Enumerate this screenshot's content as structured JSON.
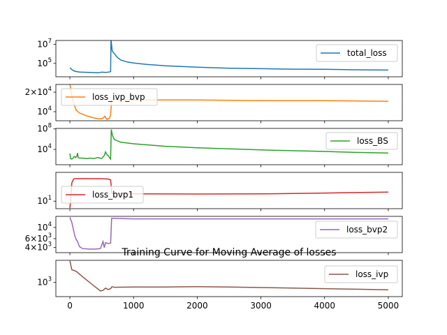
{
  "figure_title": "Training Curve for Moving Average of losses",
  "chart_data": [
    {
      "type": "line",
      "yscale": "log",
      "series_name": "total_loss",
      "color": "#1f77b4",
      "legend_position": "upper right",
      "xlim": [
        -220,
        5220
      ],
      "ylim_log10": [
        3.6,
        7.4
      ],
      "yticks": [
        {
          "value_log10": 5,
          "mantissa": "10",
          "exponent": "5"
        },
        {
          "value_log10": 7,
          "mantissa": "10",
          "exponent": "7"
        }
      ],
      "points": [
        [
          0,
          4.55
        ],
        [
          40,
          4.3
        ],
        [
          80,
          4.18
        ],
        [
          150,
          4.1
        ],
        [
          300,
          4.06
        ],
        [
          450,
          4.02
        ],
        [
          500,
          4.08
        ],
        [
          560,
          4.05
        ],
        [
          620,
          4.1
        ],
        [
          640,
          4.15
        ],
        [
          645,
          7.5
        ],
        [
          665,
          6.3
        ],
        [
          700,
          6.0
        ],
        [
          750,
          5.6
        ],
        [
          800,
          5.35
        ],
        [
          900,
          5.15
        ],
        [
          1000,
          5.05
        ],
        [
          1200,
          4.9
        ],
        [
          1500,
          4.75
        ],
        [
          2000,
          4.6
        ],
        [
          2500,
          4.5
        ],
        [
          3000,
          4.45
        ],
        [
          3500,
          4.4
        ],
        [
          4000,
          4.38
        ],
        [
          4500,
          4.33
        ],
        [
          5000,
          4.3
        ]
      ]
    },
    {
      "type": "line",
      "yscale": "log",
      "series_name": "loss_ivp_bvp",
      "color": "#ff7f0e",
      "legend_position": "upper left",
      "xlim": [
        -220,
        5220
      ],
      "ylim_log10": [
        3.86,
        4.42
      ],
      "yticks": [
        {
          "value_log10": 4.30103,
          "mantissa": "2×10",
          "exponent": "4"
        },
        {
          "value_log10": 4,
          "mantissa": "10",
          "exponent": "4"
        }
      ],
      "points": [
        [
          0,
          4.43
        ],
        [
          20,
          4.3
        ],
        [
          50,
          4.15
        ],
        [
          100,
          4.02
        ],
        [
          150,
          3.98
        ],
        [
          250,
          3.94
        ],
        [
          350,
          3.91
        ],
        [
          450,
          3.89
        ],
        [
          480,
          3.89
        ],
        [
          520,
          3.9
        ],
        [
          550,
          3.93
        ],
        [
          580,
          3.88
        ],
        [
          620,
          3.9
        ],
        [
          640,
          3.95
        ],
        [
          655,
          4.18
        ],
        [
          700,
          4.18
        ],
        [
          1000,
          4.18
        ],
        [
          2000,
          4.18
        ],
        [
          3000,
          4.17
        ],
        [
          4000,
          4.17
        ],
        [
          5000,
          4.16
        ]
      ]
    },
    {
      "type": "line",
      "yscale": "log",
      "series_name": "loss_BS",
      "color": "#2ca02c",
      "legend_position": "right",
      "xlim": [
        -220,
        5220
      ],
      "ylim_log10": [
        1.0,
        8.1
      ],
      "yticks": [
        {
          "value_log10": 4,
          "mantissa": "10",
          "exponent": "4"
        },
        {
          "value_log10": 8,
          "mantissa": "10",
          "exponent": "8"
        }
      ],
      "points": [
        [
          0,
          3.2
        ],
        [
          10,
          2.2
        ],
        [
          30,
          2.1
        ],
        [
          50,
          2.3
        ],
        [
          70,
          2.6
        ],
        [
          90,
          2.4
        ],
        [
          110,
          2.7
        ],
        [
          120,
          3.3
        ],
        [
          130,
          2.4
        ],
        [
          150,
          2.3
        ],
        [
          200,
          2.3
        ],
        [
          260,
          2.2
        ],
        [
          320,
          2.3
        ],
        [
          380,
          2.2
        ],
        [
          440,
          2.4
        ],
        [
          500,
          2.2
        ],
        [
          540,
          2.8
        ],
        [
          560,
          3.5
        ],
        [
          580,
          3.0
        ],
        [
          600,
          2.8
        ],
        [
          620,
          2.4
        ],
        [
          640,
          2.1
        ],
        [
          650,
          7.9
        ],
        [
          670,
          6.7
        ],
        [
          700,
          5.9
        ],
        [
          800,
          5.4
        ],
        [
          1000,
          5.1
        ],
        [
          1500,
          4.6
        ],
        [
          2000,
          4.3
        ],
        [
          3000,
          3.9
        ],
        [
          4000,
          3.6
        ],
        [
          4500,
          3.4
        ],
        [
          5000,
          3.3
        ]
      ]
    },
    {
      "type": "line",
      "yscale": "log",
      "series_name": "loss_bvp1",
      "color": "#d62728",
      "legend_position": "lower left",
      "xlim": [
        -220,
        5220
      ],
      "ylim_log10": [
        0.4,
        3.3
      ],
      "yticks": [
        {
          "value_log10": 1,
          "mantissa": "10",
          "exponent": "1"
        }
      ],
      "points": [
        [
          0,
          0.45
        ],
        [
          15,
          1.3
        ],
        [
          30,
          2.45
        ],
        [
          60,
          2.78
        ],
        [
          100,
          2.8
        ],
        [
          300,
          2.8
        ],
        [
          500,
          2.79
        ],
        [
          600,
          2.77
        ],
        [
          640,
          2.7
        ],
        [
          660,
          1.62
        ],
        [
          700,
          1.6
        ],
        [
          1000,
          1.59
        ],
        [
          2000,
          1.57
        ],
        [
          3000,
          1.58
        ],
        [
          4000,
          1.65
        ],
        [
          5000,
          1.73
        ]
      ]
    },
    {
      "type": "line",
      "yscale": "log",
      "series_name": "loss_bvp2",
      "color": "#9467bd",
      "legend_position": "right",
      "xlim": [
        -220,
        5220
      ],
      "ylim_log10": [
        3.5,
        4.22
      ],
      "yticks": [
        {
          "value_log10": 4,
          "mantissa": "10",
          "exponent": "4"
        },
        {
          "value_log10": 3.778,
          "mantissa": "6×10",
          "exponent": "3"
        },
        {
          "value_log10": 3.602,
          "mantissa": "4×10",
          "exponent": "3"
        }
      ],
      "points": [
        [
          0,
          4.2
        ],
        [
          30,
          4.1
        ],
        [
          80,
          3.82
        ],
        [
          100,
          3.76
        ],
        [
          120,
          3.72
        ],
        [
          150,
          3.62
        ],
        [
          200,
          3.58
        ],
        [
          300,
          3.57
        ],
        [
          400,
          3.57
        ],
        [
          480,
          3.58
        ],
        [
          520,
          3.72
        ],
        [
          540,
          3.6
        ],
        [
          560,
          3.7
        ],
        [
          600,
          3.68
        ],
        [
          640,
          3.69
        ],
        [
          655,
          4.18
        ],
        [
          700,
          4.18
        ],
        [
          1000,
          4.17
        ],
        [
          2000,
          4.17
        ],
        [
          3000,
          4.17
        ],
        [
          4000,
          4.17
        ],
        [
          5000,
          4.17
        ]
      ]
    },
    {
      "type": "line",
      "yscale": "log",
      "series_name": "loss_ivp",
      "color": "#8c564b",
      "legend_position": "upper right",
      "xlim": [
        -220,
        5220
      ],
      "ylim_log10": [
        2.5,
        3.78
      ],
      "yticks": [
        {
          "value_log10": 3,
          "mantissa": "10",
          "exponent": "3"
        }
      ],
      "points": [
        [
          0,
          3.76
        ],
        [
          30,
          3.45
        ],
        [
          100,
          3.39
        ],
        [
          200,
          3.2
        ],
        [
          300,
          3.02
        ],
        [
          400,
          2.84
        ],
        [
          480,
          2.7
        ],
        [
          520,
          2.72
        ],
        [
          560,
          2.8
        ],
        [
          600,
          2.75
        ],
        [
          640,
          2.78
        ],
        [
          660,
          2.85
        ],
        [
          700,
          2.83
        ],
        [
          1000,
          2.84
        ],
        [
          1500,
          2.84
        ],
        [
          2000,
          2.85
        ],
        [
          2500,
          2.84
        ],
        [
          3000,
          2.82
        ],
        [
          3500,
          2.8
        ],
        [
          4000,
          2.78
        ],
        [
          4500,
          2.76
        ],
        [
          5000,
          2.74
        ]
      ]
    }
  ],
  "xticks": [
    {
      "value": 0,
      "label": "0"
    },
    {
      "value": 1000,
      "label": "1000"
    },
    {
      "value": 2000,
      "label": "2000"
    },
    {
      "value": 3000,
      "label": "3000"
    },
    {
      "value": 4000,
      "label": "4000"
    },
    {
      "value": 5000,
      "label": "5000"
    }
  ]
}
